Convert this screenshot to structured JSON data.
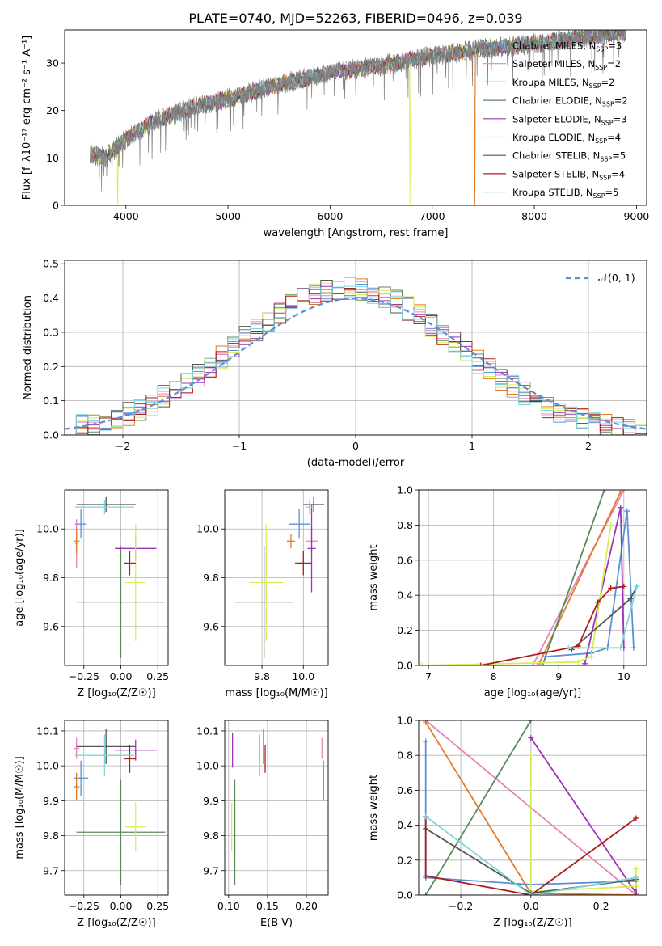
{
  "title": "PLATE=0740, MJD=52263, FIBERID=0496, z=0.039",
  "colors": {
    "chabrier_miles": "#5b8fd6",
    "salpeter_miles": "#e884b8",
    "kroupa_miles": "#e07b2a",
    "chabrier_elodie": "#5a8a5a",
    "salpeter_elodie": "#9c34b8",
    "kroupa_elodie": "#d6ee55",
    "chabrier_stelib": "#555555",
    "salpeter_stelib": "#b01c1c",
    "kroupa_stelib": "#7dd6dc",
    "observed": "#808080",
    "normal": "#5b8fd6"
  },
  "chart_data": [
    {
      "id": "spectrum",
      "type": "line",
      "xlabel": "wavelength [Angstrom, rest frame]",
      "ylabel": "Flux [f_λ10⁻¹⁷ erg cm⁻² s⁻¹ A⁻¹]",
      "xlim": [
        3400,
        9100
      ],
      "ylim": [
        0,
        37
      ],
      "xticks": [
        4000,
        5000,
        6000,
        7000,
        8000,
        9000
      ],
      "yticks": [
        0,
        10,
        20,
        30
      ],
      "grid": false,
      "legend": "right",
      "continuum": {
        "x": [
          3650,
          3800,
          4000,
          4300,
          4700,
          5000,
          5500,
          6000,
          6500,
          7000,
          7500,
          8000,
          8500,
          8900
        ],
        "y": [
          11,
          10,
          14,
          18,
          21,
          22.5,
          25.5,
          28,
          29.5,
          31.5,
          33,
          34,
          35.5,
          36.5
        ]
      },
      "series": [
        {
          "name": "Chabrier MILES, N_SSP=3",
          "color_key": "chabrier_miles"
        },
        {
          "name": "Salpeter MILES, N_SSP=2",
          "color_key": "salpeter_miles"
        },
        {
          "name": "Kroupa MILES, N_SSP=2",
          "color_key": "kroupa_miles"
        },
        {
          "name": "Chabrier ELODIE, N_SSP=2",
          "color_key": "chabrier_elodie"
        },
        {
          "name": "Salpeter ELODIE, N_SSP=3",
          "color_key": "salpeter_elodie"
        },
        {
          "name": "Kroupa ELODIE, N_SSP=4",
          "color_key": "kroupa_elodie"
        },
        {
          "name": "Chabrier STELIB, N_SSP=5",
          "color_key": "chabrier_stelib"
        },
        {
          "name": "Salpeter STELIB, N_SSP=4",
          "color_key": "salpeter_stelib"
        },
        {
          "name": "Kroupa STELIB, N_SSP=5",
          "color_key": "kroupa_stelib"
        }
      ],
      "dropouts": [
        {
          "x": 3920,
          "color_key": "kroupa_elodie"
        },
        {
          "x": 6780,
          "color_key": "kroupa_elodie"
        },
        {
          "x": 7420,
          "color_key": "kroupa_miles"
        }
      ]
    },
    {
      "id": "residuals",
      "type": "histogram",
      "xlabel": "(data-model)/error",
      "ylabel": "Normed distribution",
      "xlim": [
        -2.5,
        2.5
      ],
      "ylim": [
        0,
        0.51
      ],
      "xticks": [
        -2,
        -1,
        0,
        1,
        2
      ],
      "yticks": [
        0.0,
        0.1,
        0.2,
        0.3,
        0.4,
        0.5
      ],
      "grid": true,
      "legend": "top-right",
      "normal_label": "𝒩(0, 1)",
      "bin_width": 0.1
    },
    {
      "id": "age_vs_Z",
      "type": "scatter",
      "xlabel": "Z [log₁₀(Z/Z☉)]",
      "ylabel": "age  [log₁₀(age/yr)]",
      "xlim": [
        -0.38,
        0.32
      ],
      "ylim": [
        9.44,
        10.16
      ],
      "xticks": [
        -0.25,
        0.0,
        0.25
      ],
      "yticks": [
        9.6,
        9.8,
        10.0
      ],
      "grid": true,
      "points": [
        {
          "c": "chabrier_miles",
          "x": -0.27,
          "y": 10.02,
          "xe": 0.04,
          "ye": 0.06
        },
        {
          "c": "salpeter_miles",
          "x": -0.3,
          "y": 9.94,
          "xe": 0.01,
          "ye": 0.1
        },
        {
          "c": "kroupa_miles",
          "x": -0.3,
          "y": 9.95,
          "xe": 0.02,
          "ye": 0.05
        },
        {
          "c": "chabrier_elodie",
          "x": 0.0,
          "y": 9.7,
          "xe": 0.3,
          "ye": 0.23
        },
        {
          "c": "salpeter_elodie",
          "x": 0.1,
          "y": 9.92,
          "xe": 0.14,
          "ye": 0.05
        },
        {
          "c": "kroupa_elodie",
          "x": 0.1,
          "y": 9.78,
          "xe": 0.07,
          "ye": 0.24
        },
        {
          "c": "chabrier_stelib",
          "x": -0.1,
          "y": 10.1,
          "xe": 0.2,
          "ye": 0.03
        },
        {
          "c": "salpeter_stelib",
          "x": 0.06,
          "y": 9.86,
          "xe": 0.04,
          "ye": 0.05
        },
        {
          "c": "kroupa_stelib",
          "x": -0.11,
          "y": 10.09,
          "xe": 0.2,
          "ye": 0.03
        }
      ]
    },
    {
      "id": "age_vs_mass",
      "type": "scatter",
      "xlabel": "mass [log₁₀(M/M☉)]",
      "ylabel": "",
      "xlim": [
        9.62,
        10.12
      ],
      "ylim": [
        9.44,
        10.16
      ],
      "xticks": [
        9.8,
        10.0
      ],
      "yticks": [
        9.6,
        9.8,
        10.0
      ],
      "grid": true,
      "points": [
        {
          "c": "chabrier_miles",
          "x": 9.98,
          "y": 10.02,
          "xe": 0.05,
          "ye": 0.06
        },
        {
          "c": "salpeter_miles",
          "x": 10.04,
          "y": 9.95,
          "xe": 0.03,
          "ye": 0.05
        },
        {
          "c": "kroupa_miles",
          "x": 9.94,
          "y": 9.95,
          "xe": 0.02,
          "ye": 0.03
        },
        {
          "c": "chabrier_elodie",
          "x": 9.81,
          "y": 9.7,
          "xe": 0.14,
          "ye": 0.23
        },
        {
          "c": "salpeter_elodie",
          "x": 10.04,
          "y": 9.92,
          "xe": 0.02,
          "ye": 0.18
        },
        {
          "c": "kroupa_elodie",
          "x": 9.82,
          "y": 9.78,
          "xe": 0.08,
          "ye": 0.24
        },
        {
          "c": "chabrier_stelib",
          "x": 10.05,
          "y": 10.1,
          "xe": 0.05,
          "ye": 0.03
        },
        {
          "c": "salpeter_stelib",
          "x": 10.0,
          "y": 9.86,
          "xe": 0.04,
          "ye": 0.05
        },
        {
          "c": "kroupa_stelib",
          "x": 10.03,
          "y": 10.09,
          "xe": 0.02,
          "ye": 0.03
        }
      ]
    },
    {
      "id": "mass_weight_vs_age",
      "type": "line",
      "xlabel": "age  [log₁₀(age/yr)]",
      "ylabel": "mass weight",
      "xlim": [
        6.85,
        10.35
      ],
      "ylim": [
        0,
        1
      ],
      "xticks": [
        7,
        8,
        9,
        10
      ],
      "yticks": [
        0.0,
        0.2,
        0.4,
        0.6,
        0.8,
        1.0
      ],
      "grid": true,
      "lines": [
        {
          "c": "chabrier_miles",
          "x": [
            8.8,
            9.5,
            9.75,
            10.05,
            10.15
          ],
          "y": [
            0.05,
            0.07,
            0.1,
            0.88,
            0.1
          ]
        },
        {
          "c": "salpeter_miles",
          "x": [
            8.6,
            10.0
          ],
          "y": [
            0.0,
            1.0
          ]
        },
        {
          "c": "kroupa_miles",
          "x": [
            8.7,
            9.95
          ],
          "y": [
            0.01,
            0.99
          ]
        },
        {
          "c": "chabrier_elodie",
          "x": [
            8.75,
            9.7
          ],
          "y": [
            0.0,
            1.0
          ]
        },
        {
          "c": "salpeter_elodie",
          "x": [
            9.4,
            9.95,
            10.0
          ],
          "y": [
            0.01,
            0.9,
            0.1
          ]
        },
        {
          "c": "kroupa_elodie",
          "x": [
            6.9,
            9.3,
            9.5,
            9.8
          ],
          "y": [
            0.0,
            0.02,
            0.05,
            0.8
          ]
        },
        {
          "c": "chabrier_stelib",
          "x": [
            9.2,
            10.1,
            10.2
          ],
          "y": [
            0.09,
            0.38,
            0.45
          ]
        },
        {
          "c": "salpeter_stelib",
          "x": [
            7.8,
            9.3,
            9.6,
            9.8,
            10.0
          ],
          "y": [
            0.0,
            0.11,
            0.36,
            0.44,
            0.45
          ]
        },
        {
          "c": "kroupa_stelib",
          "x": [
            9.15,
            9.95,
            10.2
          ],
          "y": [
            0.1,
            0.1,
            0.45
          ]
        }
      ]
    },
    {
      "id": "mass_vs_Z",
      "type": "scatter",
      "xlabel": "Z [log₁₀(Z/Z☉)]",
      "ylabel": "mass [log₁₀(M/M☉)]",
      "xlim": [
        -0.38,
        0.32
      ],
      "ylim": [
        9.63,
        10.13
      ],
      "xticks": [
        -0.25,
        0.0,
        0.25
      ],
      "yticks": [
        9.7,
        9.8,
        9.9,
        10.0,
        10.1
      ],
      "grid": true,
      "points": [
        {
          "c": "chabrier_miles",
          "x": -0.27,
          "y": 9.965,
          "xe": 0.05,
          "ye": 0.05
        },
        {
          "c": "salpeter_miles",
          "x": -0.3,
          "y": 10.05,
          "xe": 0.02,
          "ye": 0.03
        },
        {
          "c": "kroupa_miles",
          "x": -0.3,
          "y": 9.94,
          "xe": 0.02,
          "ye": 0.04
        },
        {
          "c": "chabrier_elodie",
          "x": 0.0,
          "y": 9.81,
          "xe": 0.3,
          "ye": 0.15
        },
        {
          "c": "salpeter_elodie",
          "x": 0.1,
          "y": 10.045,
          "xe": 0.14,
          "ye": 0.03
        },
        {
          "c": "kroupa_elodie",
          "x": 0.1,
          "y": 9.825,
          "xe": 0.07,
          "ye": 0.07
        },
        {
          "c": "chabrier_stelib",
          "x": -0.1,
          "y": 10.055,
          "xe": 0.2,
          "ye": 0.05
        },
        {
          "c": "salpeter_stelib",
          "x": 0.06,
          "y": 10.02,
          "xe": 0.04,
          "ye": 0.04
        },
        {
          "c": "kroupa_stelib",
          "x": -0.11,
          "y": 10.03,
          "xe": 0.2,
          "ye": 0.06
        }
      ]
    },
    {
      "id": "mass_vs_EBV",
      "type": "scatter",
      "xlabel": "E(B-V)",
      "ylabel": "",
      "xlim": [
        0.095,
        0.228
      ],
      "ylim": [
        9.63,
        10.13
      ],
      "xticks": [
        0.1,
        0.15,
        0.2
      ],
      "yticks": [
        9.7,
        9.8,
        9.9,
        10.0,
        10.1
      ],
      "grid": true,
      "points": [
        {
          "c": "chabrier_miles",
          "x": 0.222,
          "y": 9.965,
          "xe": 0,
          "ye": 0.05
        },
        {
          "c": "salpeter_miles",
          "x": 0.22,
          "y": 10.05,
          "xe": 0,
          "ye": 0.03
        },
        {
          "c": "kroupa_miles",
          "x": 0.222,
          "y": 9.94,
          "xe": 0,
          "ye": 0.04
        },
        {
          "c": "chabrier_elodie",
          "x": 0.108,
          "y": 9.81,
          "xe": 0,
          "ye": 0.15
        },
        {
          "c": "salpeter_elodie",
          "x": 0.105,
          "y": 10.045,
          "xe": 0,
          "ye": 0.05
        },
        {
          "c": "kroupa_elodie",
          "x": 0.104,
          "y": 9.825,
          "xe": 0,
          "ye": 0.07
        },
        {
          "c": "chabrier_stelib",
          "x": 0.145,
          "y": 10.055,
          "xe": 0,
          "ye": 0.05
        },
        {
          "c": "salpeter_stelib",
          "x": 0.147,
          "y": 10.02,
          "xe": 0,
          "ye": 0.04
        },
        {
          "c": "kroupa_stelib",
          "x": 0.14,
          "y": 10.03,
          "xe": 0,
          "ye": 0.06
        }
      ]
    },
    {
      "id": "mass_weight_vs_Z",
      "type": "line",
      "xlabel": "Z [log₁₀(Z/Z☉)]",
      "ylabel": "mass weight",
      "xlim": [
        -0.32,
        0.33
      ],
      "ylim": [
        0,
        1
      ],
      "xticks": [
        -0.2,
        0.0,
        0.2
      ],
      "yticks": [
        0.0,
        0.2,
        0.4,
        0.6,
        0.8,
        1.0
      ],
      "grid": true,
      "lines": [
        {
          "c": "chabrier_miles",
          "x": [
            -0.3,
            -0.3,
            0.0,
            0.3
          ],
          "y": [
            0.88,
            0.1,
            0.06,
            0.08
          ]
        },
        {
          "c": "salpeter_miles",
          "x": [
            -0.3,
            0.3
          ],
          "y": [
            1.0,
            0.0
          ]
        },
        {
          "c": "kroupa_miles",
          "x": [
            -0.3,
            0.0,
            0.3
          ],
          "y": [
            0.99,
            0.01,
            0.0
          ]
        },
        {
          "c": "chabrier_elodie",
          "x": [
            -0.3,
            0.0
          ],
          "y": [
            0.0,
            1.0
          ]
        },
        {
          "c": "salpeter_elodie",
          "x": [
            0.0,
            0.3,
            0.3
          ],
          "y": [
            0.9,
            0.01,
            0.1
          ]
        },
        {
          "c": "kroupa_elodie",
          "x": [
            0.0,
            0.0,
            0.3,
            0.3
          ],
          "y": [
            0.8,
            0.02,
            0.05,
            0.15
          ]
        },
        {
          "c": "chabrier_stelib",
          "x": [
            -0.3,
            -0.3,
            0.0,
            0.3
          ],
          "y": [
            0.45,
            0.38,
            0.01,
            0.09
          ]
        },
        {
          "c": "salpeter_stelib",
          "x": [
            -0.3,
            -0.3,
            0.0,
            0.3
          ],
          "y": [
            0.45,
            0.11,
            0.0,
            0.44
          ]
        },
        {
          "c": "kroupa_stelib",
          "x": [
            -0.3,
            0.0,
            0.3
          ],
          "y": [
            0.45,
            0.0,
            0.1
          ]
        }
      ]
    }
  ]
}
